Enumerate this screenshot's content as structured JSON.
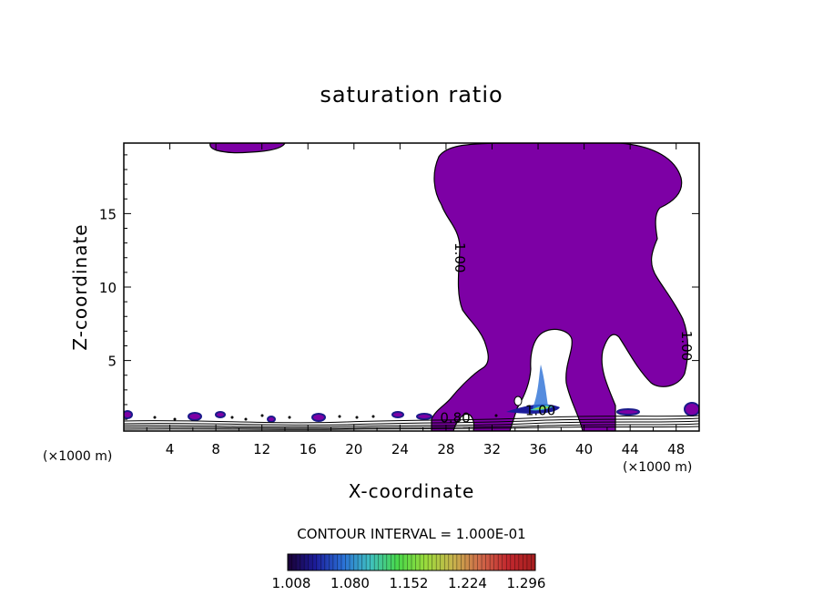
{
  "chart_data": {
    "type": "contour",
    "title": "saturation ratio",
    "xlabel": "X-coordinate",
    "ylabel": "Z-coordinate",
    "x_unit_left": "(×1000 m)",
    "x_unit_right": "(×1000 m)",
    "xlim": [
      0,
      50
    ],
    "ylim": [
      0.2,
      19.8
    ],
    "xticks": [
      4,
      8,
      12,
      16,
      20,
      24,
      28,
      32,
      36,
      40,
      44,
      48
    ],
    "yticks": [
      5,
      10,
      15
    ],
    "contour_interval_text": "CONTOUR INTERVAL = 1.000E-01",
    "contour_labels": [
      {
        "text": "1.00",
        "x": 28.8,
        "z": 12.0
      },
      {
        "text": "1.00",
        "x": 48.5,
        "z": 6.0
      },
      {
        "text": "1.00",
        "x": 36.2,
        "z": 1.3
      },
      {
        "text": "0.80",
        "x": 28.8,
        "z": 0.8
      }
    ],
    "colorbar": {
      "min": 1.008,
      "max": 1.296,
      "ticks": [
        "1.008",
        "1.080",
        "1.152",
        "1.224",
        "1.296"
      ],
      "colors": [
        "#1a0033",
        "#1c1c9a",
        "#2a6fd6",
        "#3fc0c0",
        "#49d84a",
        "#9adb3c",
        "#c7b44c",
        "#d16a4a",
        "#c2282e",
        "#a51e1e"
      ]
    },
    "fill_color": "#7d00a5",
    "grid": false
  }
}
